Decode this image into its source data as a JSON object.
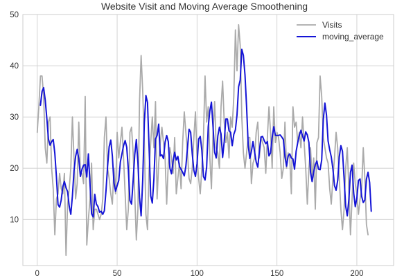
{
  "chart_data": {
    "type": "line",
    "title": "Website Visit and Moving Average Smoothening",
    "xlabel": "",
    "ylabel": "",
    "xlim": [
      -9,
      223
    ],
    "ylim": [
      1,
      50
    ],
    "xticks": [
      0,
      50,
      100,
      150,
      200
    ],
    "yticks": [
      10,
      20,
      30,
      40,
      50
    ],
    "grid": true,
    "legend": {
      "position": "top-right",
      "entries": [
        "Visits",
        "moving_average"
      ]
    },
    "series": [
      {
        "name": "Visits",
        "color": "#aaaaaa",
        "values": [
          27,
          32,
          38,
          38,
          34,
          24,
          21,
          29,
          30,
          20,
          16,
          7,
          14,
          15,
          19,
          16,
          15,
          19,
          3,
          13,
          16,
          20,
          30,
          22,
          14,
          17,
          29,
          19,
          19,
          17,
          34,
          5,
          10,
          14,
          21,
          8,
          12,
          12,
          11,
          10,
          11,
          14,
          26,
          30,
          20,
          18,
          15,
          13,
          20,
          15,
          27,
          22,
          25,
          28,
          22,
          15,
          8,
          12,
          27,
          28,
          23,
          15,
          6,
          12,
          33,
          42,
          35,
          25,
          11,
          8,
          20,
          25,
          30,
          24,
          33,
          14,
          21,
          25,
          28,
          25,
          22,
          13,
          21,
          24,
          22,
          19,
          26,
          15,
          18,
          21,
          16,
          25,
          31,
          27,
          23,
          18,
          17,
          20,
          26,
          31,
          22,
          18,
          15,
          20,
          26,
          38,
          29,
          32,
          22,
          16,
          27,
          33,
          24,
          23,
          20,
          32,
          37,
          29,
          25,
          27,
          22,
          30,
          28,
          34,
          47,
          39,
          48,
          44,
          30,
          23,
          20,
          23,
          26,
          26,
          17,
          21,
          22,
          27,
          29,
          22,
          26,
          25,
          24,
          19,
          26,
          32,
          27,
          20,
          32,
          25,
          27,
          26,
          23,
          18,
          20,
          29,
          20,
          23,
          22,
          15,
          32,
          28,
          29,
          25,
          27,
          24,
          30,
          25,
          20,
          13,
          20,
          24,
          18,
          22,
          12,
          25,
          26,
          38,
          34,
          26,
          24,
          22,
          21,
          16,
          13,
          18,
          22,
          27,
          24,
          18,
          12,
          8,
          12,
          20,
          24,
          16,
          7,
          14,
          21,
          17,
          15,
          11,
          14,
          16,
          24,
          18,
          9,
          7
        ],
        "x_start": 0,
        "x_step": 1
      },
      {
        "name": "moving_average",
        "color": "#1414d6",
        "values": [
          32.3,
          35.0,
          35.7,
          33.3,
          29.7,
          25.7,
          24.5,
          25.2,
          25.6,
          22.9,
          18.3,
          12.9,
          12.4,
          13.8,
          16.4,
          17.4,
          16.2,
          15.4,
          12.6,
          11.0,
          14.6,
          19.5,
          22.3,
          23.7,
          21.8,
          18.4,
          19.8,
          20.6,
          20.7,
          18.3,
          22.8,
          17.0,
          11.1,
          10.5,
          14.9,
          13.0,
          12.5,
          11.4,
          11.6,
          11.0,
          11.7,
          15.5,
          20.3,
          24.2,
          25.5,
          22.4,
          17.1,
          15.5,
          16.6,
          17.6,
          21.2,
          22.8,
          24.4,
          25.4,
          24.1,
          19.7,
          13.7,
          13.0,
          17.6,
          22.6,
          25.6,
          21.1,
          14.3,
          10.7,
          17.7,
          28.9,
          34.2,
          32.8,
          23.9,
          14.6,
          13.2,
          17.9,
          25.7,
          26.4,
          28.6,
          22.4,
          22.6,
          21.9,
          25.1,
          26.4,
          25.2,
          20.0,
          18.9,
          21.4,
          23.1,
          21.6,
          22.3,
          20.3,
          19.8,
          19.2,
          18.5,
          20.4,
          23.9,
          27.6,
          27.0,
          22.8,
          19.6,
          18.4,
          20.9,
          25.7,
          26.2,
          23.5,
          18.4,
          17.7,
          20.2,
          28.1,
          31.2,
          32.9,
          28.1,
          23.1,
          22.0,
          26.3,
          28.0,
          26.7,
          22.1,
          25.2,
          29.6,
          29.6,
          27.3,
          27.0,
          24.4,
          26.6,
          27.5,
          30.4,
          35.9,
          37.2,
          43.2,
          42.0,
          38.2,
          32.0,
          24.6,
          21.9,
          23.3,
          25.2,
          23.2,
          21.2,
          20.2,
          23.3,
          26.1,
          26.2,
          25.4,
          24.8,
          25.2,
          22.4,
          23.0,
          26.0,
          28.1,
          26.4,
          26.4,
          26.4,
          26.5,
          26.1,
          25.6,
          22.3,
          20.4,
          22.4,
          22.8,
          22.0,
          21.8,
          19.8,
          23.3,
          25.0,
          26.4,
          27.4,
          26.3,
          25.3,
          27.1,
          26.5,
          25.0,
          19.2,
          17.4,
          19.3,
          20.7,
          21.4,
          19.8,
          19.7,
          21.6,
          29.5,
          32.7,
          30.4,
          25.3,
          23.6,
          22.2,
          19.9,
          16.6,
          15.7,
          17.6,
          22.2,
          24.4,
          23.3,
          18.1,
          12.6,
          10.7,
          13.9,
          19.2,
          20.6,
          15.2,
          12.5,
          14.2,
          17.6,
          17.9,
          14.5,
          13.3,
          13.8,
          17.9,
          19.2,
          17.2,
          11.6
        ],
        "x_start": 2,
        "x_step": 1
      }
    ]
  }
}
